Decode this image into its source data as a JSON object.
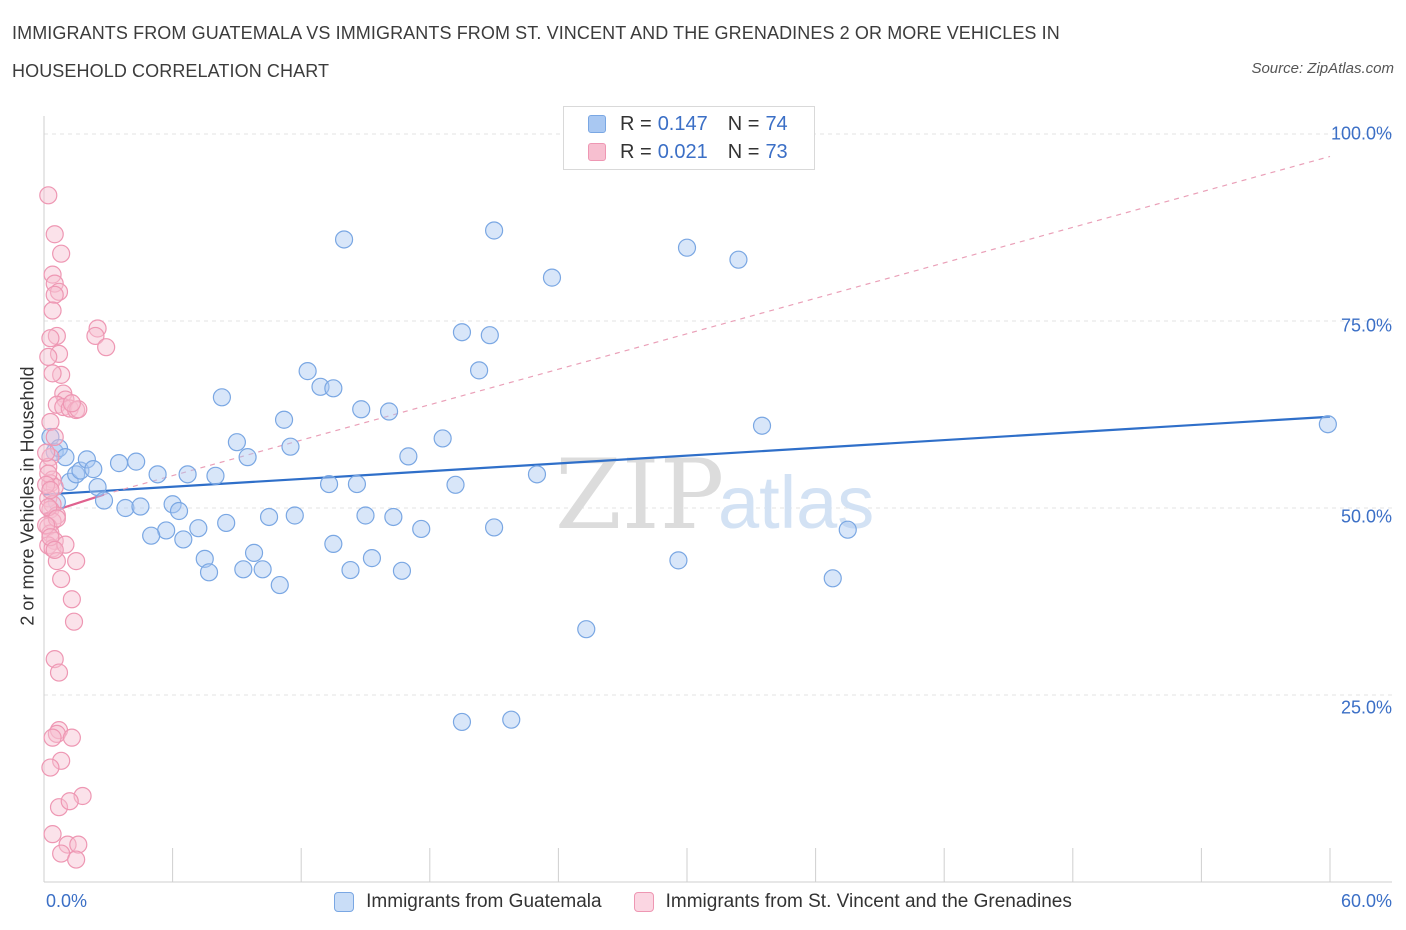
{
  "title": "IMMIGRANTS FROM GUATEMALA VS IMMIGRANTS FROM ST. VINCENT AND THE GRENADINES 2 OR MORE VEHICLES IN HOUSEHOLD CORRELATION CHART",
  "source": "Source: ZipAtlas.com",
  "watermark": {
    "zip": "ZIP",
    "atlas": "atlas"
  },
  "legend_top": [
    {
      "r_label": "R =",
      "r_value": "0.147",
      "n_label": "N =",
      "n_value": "74",
      "color": "#a9c8f2",
      "border": "#7aa7e3"
    },
    {
      "r_label": "R =",
      "r_value": "0.021",
      "n_label": "N =",
      "n_value": "73",
      "color": "#f7bfd0",
      "border": "#ee97b3"
    }
  ],
  "chart_data": {
    "type": "scatter",
    "ylabel": "2 or more Vehicles in Household",
    "xlim": [
      0,
      60
    ],
    "ylim": [
      0,
      100
    ],
    "x_tick_labels": [
      "0.0%",
      "60.0%"
    ],
    "y_ticks": [
      {
        "value": 25,
        "label": "25.0%"
      },
      {
        "value": 50,
        "label": "50.0%"
      },
      {
        "value": 75,
        "label": "75.0%"
      },
      {
        "value": 100,
        "label": "100.0%"
      }
    ],
    "grid": "horizontal dashed",
    "legend_position": "bottom",
    "series": [
      {
        "name": "Immigrants from Guatemala",
        "color": "#7aa7e3",
        "fill": "#a9c8f2",
        "trend": {
          "x": [
            0,
            60
          ],
          "y": [
            51.8,
            62.2
          ],
          "color": "#2f6fc9",
          "style": "solid"
        },
        "points": [
          [
            0.3,
            59.5
          ],
          [
            0.5,
            57.5
          ],
          [
            0.7,
            58.0
          ],
          [
            1.0,
            56.8
          ],
          [
            1.2,
            53.5
          ],
          [
            1.5,
            54.5
          ],
          [
            1.7,
            55.0
          ],
          [
            2.0,
            56.5
          ],
          [
            2.3,
            55.2
          ],
          [
            2.5,
            52.8
          ],
          [
            2.8,
            51.0
          ],
          [
            3.5,
            56.0
          ],
          [
            3.8,
            50.0
          ],
          [
            4.5,
            50.2
          ],
          [
            4.3,
            56.2
          ],
          [
            5.3,
            54.5
          ],
          [
            5.7,
            47.0
          ],
          [
            5.0,
            46.3
          ],
          [
            6.0,
            50.5
          ],
          [
            6.3,
            49.6
          ],
          [
            6.5,
            45.8
          ],
          [
            6.7,
            54.5
          ],
          [
            7.2,
            47.3
          ],
          [
            7.5,
            43.2
          ],
          [
            7.7,
            41.4
          ],
          [
            8.0,
            54.3
          ],
          [
            8.5,
            48.0
          ],
          [
            8.3,
            64.8
          ],
          [
            9.0,
            58.8
          ],
          [
            9.3,
            41.8
          ],
          [
            9.5,
            56.8
          ],
          [
            9.8,
            44.0
          ],
          [
            10.2,
            41.8
          ],
          [
            10.5,
            48.8
          ],
          [
            11.0,
            39.7
          ],
          [
            11.2,
            61.8
          ],
          [
            11.5,
            58.2
          ],
          [
            11.7,
            49.0
          ],
          [
            12.3,
            68.3
          ],
          [
            12.9,
            66.2
          ],
          [
            13.5,
            66.0
          ],
          [
            13.3,
            53.2
          ],
          [
            13.5,
            45.2
          ],
          [
            14.0,
            85.9
          ],
          [
            14.3,
            41.7
          ],
          [
            14.8,
            63.2
          ],
          [
            14.6,
            53.2
          ],
          [
            15.0,
            49.0
          ],
          [
            15.3,
            43.3
          ],
          [
            16.1,
            62.9
          ],
          [
            16.3,
            48.8
          ],
          [
            16.7,
            41.6
          ],
          [
            17.0,
            56.9
          ],
          [
            17.6,
            47.2
          ],
          [
            18.6,
            59.3
          ],
          [
            19.2,
            53.1
          ],
          [
            19.5,
            73.5
          ],
          [
            19.5,
            21.4
          ],
          [
            20.3,
            68.4
          ],
          [
            20.8,
            73.1
          ],
          [
            21.0,
            47.4
          ],
          [
            21.0,
            87.1
          ],
          [
            21.8,
            21.7
          ],
          [
            23.0,
            54.5
          ],
          [
            23.7,
            80.8
          ],
          [
            25.3,
            33.8
          ],
          [
            29.6,
            43.0
          ],
          [
            30.0,
            84.8
          ],
          [
            32.4,
            83.2
          ],
          [
            33.5,
            61.0
          ],
          [
            36.8,
            40.6
          ],
          [
            37.5,
            47.1
          ],
          [
            59.9,
            61.2
          ],
          [
            0.6,
            50.8
          ]
        ]
      },
      {
        "name": "Immigrants from St. Vincent and the Grenadines",
        "color": "#ee97b3",
        "fill": "#f7bfd0",
        "trend": {
          "x": [
            0,
            2.8
          ],
          "y": [
            49.2,
            51.8
          ],
          "color": "#e0628f",
          "style": "solid"
        },
        "trend_ext": {
          "x": [
            2.8,
            60
          ],
          "y": [
            51.8,
            97.0
          ],
          "color": "#eaa0b8",
          "style": "dashed"
        },
        "points": [
          [
            0.2,
            91.8
          ],
          [
            0.5,
            86.6
          ],
          [
            0.8,
            84.0
          ],
          [
            0.4,
            81.2
          ],
          [
            0.5,
            80.0
          ],
          [
            0.7,
            78.9
          ],
          [
            0.5,
            78.5
          ],
          [
            0.4,
            76.4
          ],
          [
            0.6,
            73.0
          ],
          [
            0.3,
            72.7
          ],
          [
            0.7,
            70.6
          ],
          [
            0.8,
            67.8
          ],
          [
            0.9,
            65.3
          ],
          [
            1.0,
            64.5
          ],
          [
            0.6,
            63.8
          ],
          [
            0.9,
            63.5
          ],
          [
            1.2,
            63.3
          ],
          [
            1.5,
            63.1
          ],
          [
            0.3,
            61.5
          ],
          [
            0.5,
            59.5
          ],
          [
            0.3,
            56.8
          ],
          [
            0.2,
            55.5
          ],
          [
            0.4,
            53.8
          ],
          [
            0.3,
            53.3
          ],
          [
            0.5,
            52.8
          ],
          [
            0.2,
            51.3
          ],
          [
            0.4,
            50.5
          ],
          [
            0.3,
            49.8
          ],
          [
            0.6,
            49.0
          ],
          [
            0.4,
            48.2
          ],
          [
            0.2,
            47.5
          ],
          [
            0.3,
            46.6
          ],
          [
            0.5,
            45.6
          ],
          [
            0.2,
            45.0
          ],
          [
            0.4,
            44.6
          ],
          [
            0.6,
            42.9
          ],
          [
            1.5,
            42.9
          ],
          [
            0.8,
            40.5
          ],
          [
            1.3,
            37.8
          ],
          [
            1.4,
            34.8
          ],
          [
            0.5,
            29.8
          ],
          [
            0.7,
            28.0
          ],
          [
            0.7,
            20.3
          ],
          [
            0.6,
            19.8
          ],
          [
            0.4,
            19.3
          ],
          [
            1.3,
            19.3
          ],
          [
            0.8,
            16.2
          ],
          [
            0.3,
            15.3
          ],
          [
            1.8,
            11.5
          ],
          [
            0.7,
            10.0
          ],
          [
            1.2,
            10.8
          ],
          [
            0.4,
            6.4
          ],
          [
            1.1,
            5.0
          ],
          [
            1.6,
            5.0
          ],
          [
            0.8,
            3.8
          ],
          [
            1.5,
            3.0
          ],
          [
            2.5,
            74.0
          ],
          [
            2.4,
            73.0
          ],
          [
            2.9,
            71.5
          ],
          [
            0.2,
            70.2
          ],
          [
            0.4,
            68.0
          ],
          [
            1.6,
            63.2
          ],
          [
            1.3,
            64.0
          ],
          [
            0.1,
            57.4
          ],
          [
            0.2,
            54.6
          ],
          [
            0.1,
            53.1
          ],
          [
            0.3,
            52.4
          ],
          [
            0.2,
            50.1
          ],
          [
            0.6,
            48.6
          ],
          [
            0.1,
            47.7
          ],
          [
            0.3,
            46.1
          ],
          [
            1.0,
            45.1
          ],
          [
            0.5,
            44.4
          ]
        ]
      }
    ]
  }
}
